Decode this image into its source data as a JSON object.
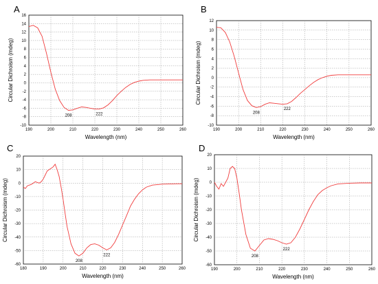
{
  "chart_data": [
    {
      "type": "line",
      "panel": "A",
      "xlabel": "Wavelength (nm)",
      "ylabel": "Circular Dichroism (mdeg)",
      "xlim": [
        190,
        260
      ],
      "ylim": [
        -10,
        16
      ],
      "xticks": [
        190,
        200,
        210,
        220,
        230,
        240,
        250,
        260
      ],
      "yticks": [
        -10,
        -8,
        -6,
        -4,
        -2,
        0,
        2,
        4,
        6,
        8,
        10,
        12,
        14,
        16
      ],
      "grid": true,
      "color": "#f03c3c",
      "series": [
        {
          "x": [
            190,
            192,
            194,
            196,
            198,
            200,
            202,
            204,
            206,
            208,
            210,
            212,
            214,
            216,
            218,
            220,
            222,
            224,
            226,
            228,
            230,
            232,
            234,
            236,
            238,
            240,
            242,
            245,
            250,
            255,
            260
          ],
          "values": [
            13.3,
            13.6,
            13.0,
            11.0,
            7.0,
            2.5,
            -1.5,
            -4.2,
            -5.8,
            -6.5,
            -6.4,
            -6.0,
            -5.7,
            -5.8,
            -6.0,
            -6.2,
            -6.2,
            -5.9,
            -5.2,
            -4.2,
            -3.0,
            -2.0,
            -1.1,
            -0.4,
            0.1,
            0.4,
            0.6,
            0.7,
            0.7,
            0.7,
            0.7
          ]
        }
      ],
      "annotations": [
        {
          "x": 208,
          "y": -6.5,
          "text": "208"
        },
        {
          "x": 222,
          "y": -6.2,
          "text": "222"
        }
      ]
    },
    {
      "type": "line",
      "panel": "B",
      "xlabel": "Wavelength (nm)",
      "ylabel": "Circular Dichroism (mdeg)",
      "xlim": [
        190,
        260
      ],
      "ylim": [
        -10,
        12
      ],
      "xticks": [
        190,
        200,
        210,
        220,
        230,
        240,
        250,
        260
      ],
      "yticks": [
        -10,
        -8,
        -6,
        -4,
        -2,
        0,
        2,
        4,
        6,
        8,
        10,
        12
      ],
      "grid": true,
      "color": "#f03c3c",
      "series": [
        {
          "x": [
            190,
            192,
            194,
            196,
            198,
            200,
            202,
            204,
            206,
            208,
            210,
            212,
            214,
            216,
            218,
            220,
            222,
            224,
            226,
            228,
            230,
            232,
            234,
            236,
            238,
            240,
            242,
            245,
            250,
            255,
            260
          ],
          "values": [
            10.6,
            10.5,
            9.5,
            7.5,
            4.5,
            1.0,
            -2.5,
            -4.8,
            -5.9,
            -6.3,
            -6.1,
            -5.6,
            -5.3,
            -5.4,
            -5.5,
            -5.6,
            -5.5,
            -5.0,
            -4.2,
            -3.3,
            -2.5,
            -1.7,
            -1.0,
            -0.4,
            0.0,
            0.3,
            0.5,
            0.6,
            0.6,
            0.6,
            0.6
          ]
        }
      ],
      "annotations": [
        {
          "x": 208,
          "y": -6.3,
          "text": "208"
        },
        {
          "x": 222,
          "y": -5.5,
          "text": "222"
        }
      ]
    },
    {
      "type": "line",
      "panel": "C",
      "xlabel": "Wavelength (nm)",
      "ylabel": "Circular Dichroism (mdeg)",
      "xlim": [
        180,
        260
      ],
      "ylim": [
        -60,
        20
      ],
      "xticks": [
        180,
        190,
        200,
        210,
        220,
        230,
        240,
        250,
        260
      ],
      "yticks": [
        -60,
        -50,
        -40,
        -30,
        -20,
        -10,
        0,
        10,
        20
      ],
      "grid": true,
      "color": "#f03c3c",
      "series": [
        {
          "x": [
            180,
            181,
            182,
            183,
            184,
            185,
            186,
            187,
            188,
            189,
            190,
            191,
            192,
            193,
            194,
            195,
            196,
            197,
            198,
            199,
            200,
            201,
            202,
            204,
            206,
            208,
            210,
            212,
            214,
            216,
            218,
            220,
            222,
            224,
            226,
            228,
            230,
            232,
            234,
            236,
            238,
            240,
            242,
            245,
            250,
            255,
            260
          ],
          "values": [
            -3,
            -4,
            -2,
            -1.5,
            -1,
            0,
            1,
            0.5,
            0,
            1,
            3,
            6,
            9,
            10,
            11,
            12,
            14,
            10,
            5,
            -3,
            -12,
            -22,
            -32,
            -45,
            -52,
            -54,
            -52,
            -48,
            -45.5,
            -45,
            -46,
            -48,
            -49.5,
            -48,
            -44,
            -38,
            -31,
            -24,
            -17,
            -12,
            -8,
            -5,
            -3,
            -1.5,
            -0.8,
            -0.6,
            -0.5
          ]
        }
      ],
      "annotations": [
        {
          "x": 208,
          "y": -54,
          "text": "208"
        },
        {
          "x": 222,
          "y": -49.5,
          "text": "222"
        }
      ]
    },
    {
      "type": "line",
      "panel": "D",
      "xlabel": "Wavelength (nm)",
      "ylabel": "Circular Dichroism (mdeg)",
      "xlim": [
        190,
        260
      ],
      "ylim": [
        -60,
        20
      ],
      "xticks": [
        190,
        200,
        210,
        220,
        230,
        240,
        250,
        260
      ],
      "yticks": [
        -60,
        -50,
        -40,
        -30,
        -20,
        -10,
        0,
        10,
        20
      ],
      "grid": true,
      "color": "#f03c3c",
      "series": [
        {
          "x": [
            190,
            191,
            192,
            193,
            194,
            195,
            196,
            197,
            198,
            199,
            200,
            201,
            202,
            204,
            206,
            208,
            210,
            212,
            214,
            216,
            218,
            220,
            222,
            224,
            226,
            228,
            230,
            232,
            234,
            236,
            238,
            240,
            242,
            245,
            250,
            255,
            260
          ],
          "values": [
            0,
            -3,
            -5,
            -1,
            -3,
            0,
            3,
            10,
            11.5,
            10,
            3,
            -8,
            -20,
            -38,
            -48,
            -50,
            -46,
            -42,
            -41,
            -41.5,
            -42.5,
            -44,
            -45,
            -44,
            -40,
            -34,
            -27,
            -20,
            -14,
            -9,
            -6,
            -4,
            -2.5,
            -1.2,
            -0.7,
            -0.5,
            -0.5
          ]
        }
      ],
      "annotations": [
        {
          "x": 208,
          "y": -50,
          "text": "208"
        },
        {
          "x": 222,
          "y": -45,
          "text": "222"
        }
      ]
    }
  ]
}
